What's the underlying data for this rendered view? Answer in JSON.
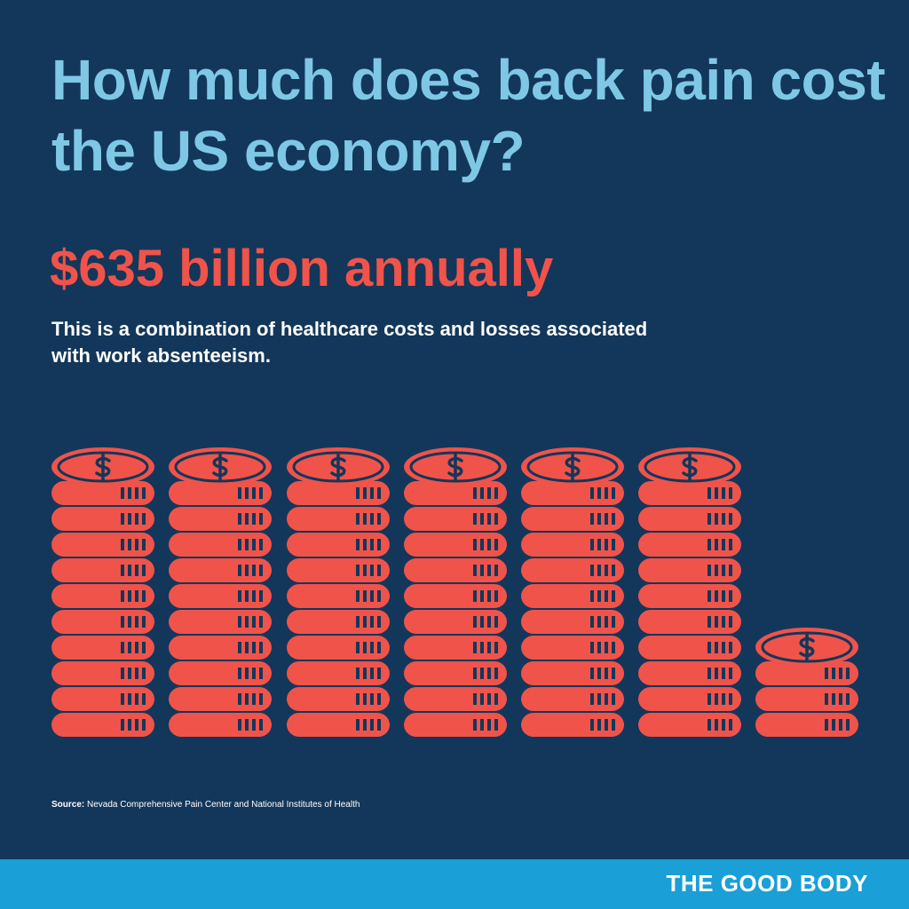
{
  "header": {
    "title": "How much does back pain cost the US economy?",
    "headline": "$635 billion annually",
    "description": "This is a combination of healthcare costs and losses associated with work absenteeism."
  },
  "source": {
    "label": "Source:",
    "text": "Nevada Comprehensive Pain Center and National Institutes of Health"
  },
  "footer": {
    "brand": "THE GOOD BODY"
  }
}
